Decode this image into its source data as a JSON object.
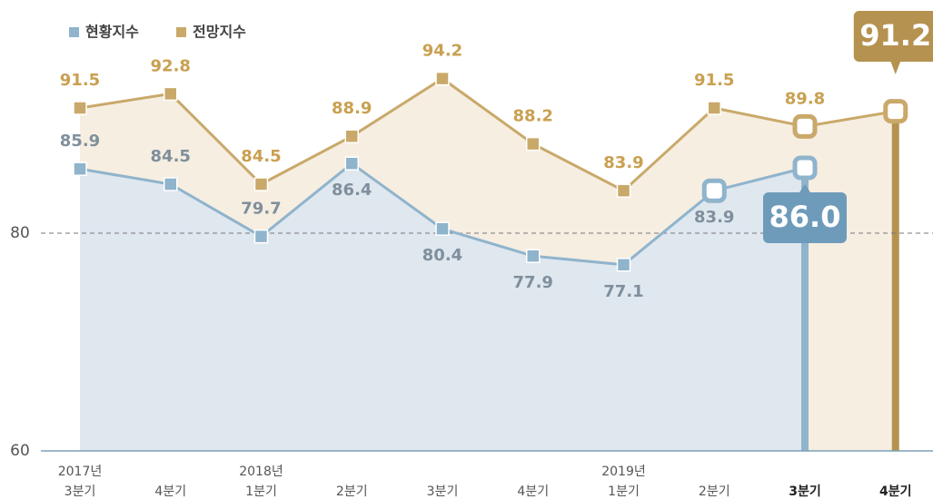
{
  "chart_data": {
    "type": "line",
    "categories": [
      "3분기",
      "4분기",
      "1분기",
      "2분기",
      "3분기",
      "4분기",
      "1분기",
      "2분기",
      "3분기",
      "4분기"
    ],
    "year_labels": [
      "2017년",
      null,
      "2018년",
      null,
      null,
      null,
      "2019년",
      null,
      null,
      null
    ],
    "series": [
      {
        "name": "현황지수",
        "color": "#8fb4cc",
        "values": [
          85.9,
          84.5,
          79.7,
          86.4,
          80.4,
          77.9,
          77.1,
          83.9,
          86.0,
          null
        ],
        "value_labels": [
          "85.9",
          "84.5",
          "79.7",
          "86.4",
          "80.4",
          "77.9",
          "77.1",
          "83.9",
          "86.0",
          null
        ]
      },
      {
        "name": "전망지수",
        "color": "#c9a96a",
        "values": [
          91.5,
          92.8,
          84.5,
          88.9,
          94.2,
          88.2,
          83.9,
          91.5,
          89.8,
          91.2
        ]
      }
    ],
    "ylim": [
      60,
      100
    ],
    "yticks": [
      60,
      80
    ]
  }
}
